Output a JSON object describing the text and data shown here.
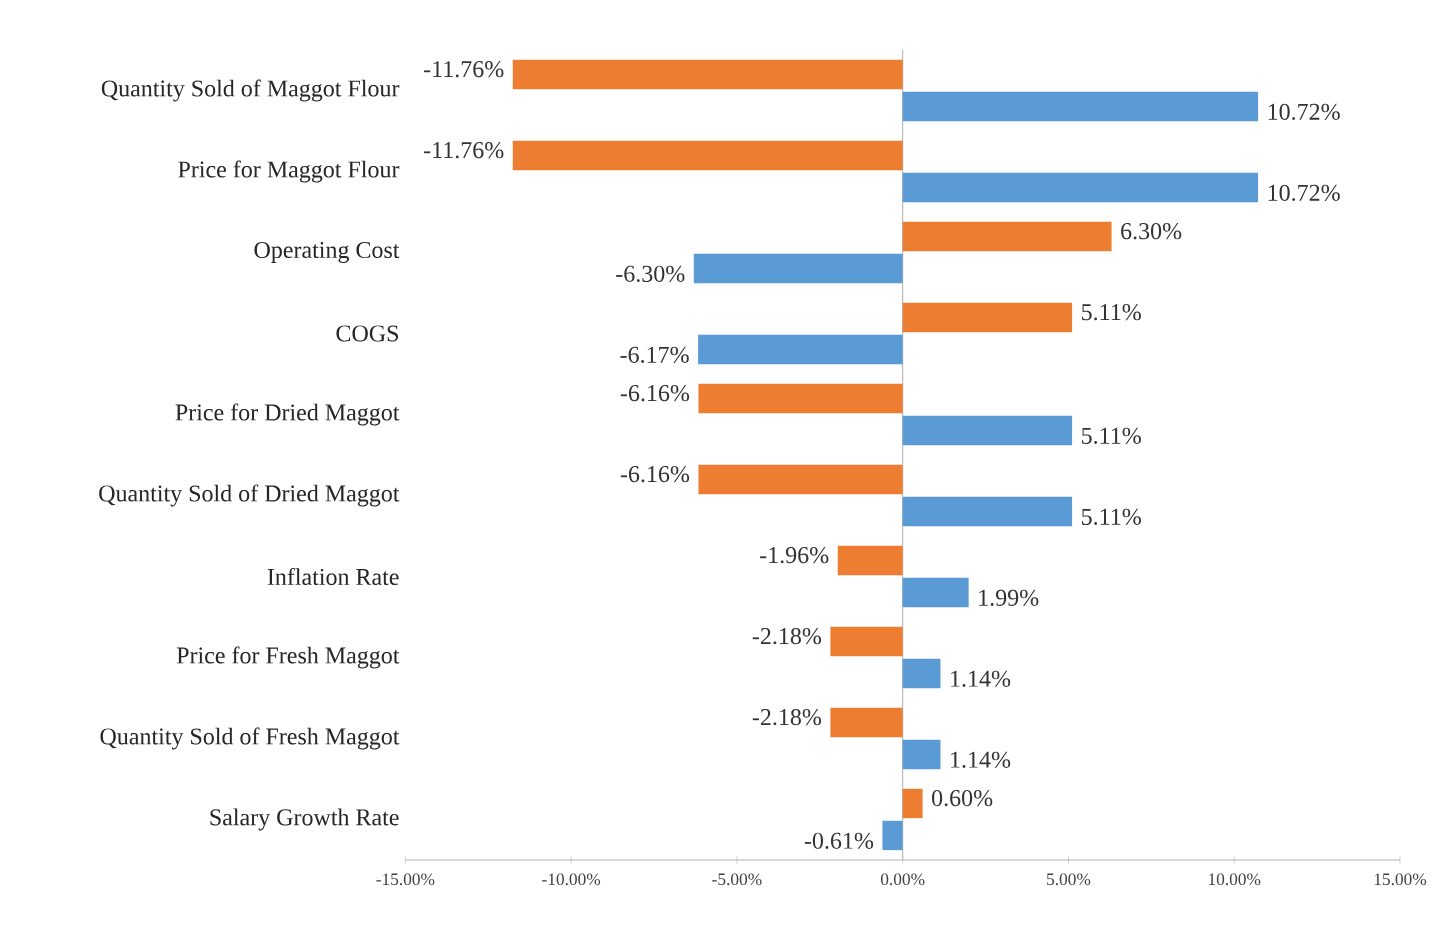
{
  "chart_data": {
    "type": "bar",
    "orientation": "horizontal",
    "categories": [
      "Quantity Sold of Maggot Flour",
      "Price for Maggot Flour",
      "Operating Cost",
      "COGS",
      "Price for Dried Maggot",
      "Quantity Sold of Dried Maggot",
      "Inflation Rate",
      "Price for Fresh Maggot",
      "Quantity Sold of  Fresh Maggot",
      "Salary Growth Rate"
    ],
    "series": [
      {
        "color": "#ed7d31",
        "values": [
          -11.76,
          -11.76,
          6.3,
          5.11,
          -6.16,
          -6.16,
          -1.96,
          -2.18,
          -2.18,
          0.6
        ],
        "value_labels": [
          "-11.76%",
          "-11.76%",
          "6.30%",
          "5.11%",
          "-6.16%",
          "-6.16%",
          "-1.96%",
          "-2.18%",
          "-2.18%",
          "0.60%"
        ]
      },
      {
        "color": "#5b9bd5",
        "values": [
          10.72,
          10.72,
          -6.3,
          -6.17,
          5.11,
          5.11,
          1.99,
          1.14,
          1.14,
          -0.61
        ],
        "value_labels": [
          "10.72%",
          "10.72%",
          "-6.30%",
          "-6.17%",
          "5.11%",
          "5.11%",
          "1.99%",
          "1.14%",
          "1.14%",
          "-0.61%"
        ]
      }
    ],
    "xlim": [
      -15,
      15
    ],
    "xticks": [
      {
        "value": -15,
        "label": "-15.00%"
      },
      {
        "value": -10,
        "label": "-10.00%"
      },
      {
        "value": -5,
        "label": "-5.00%"
      },
      {
        "value": 0,
        "label": "0.00%"
      },
      {
        "value": 5,
        "label": "5.00%"
      },
      {
        "value": 10,
        "label": "10.00%"
      },
      {
        "value": 15,
        "label": "15.00%"
      }
    ]
  }
}
